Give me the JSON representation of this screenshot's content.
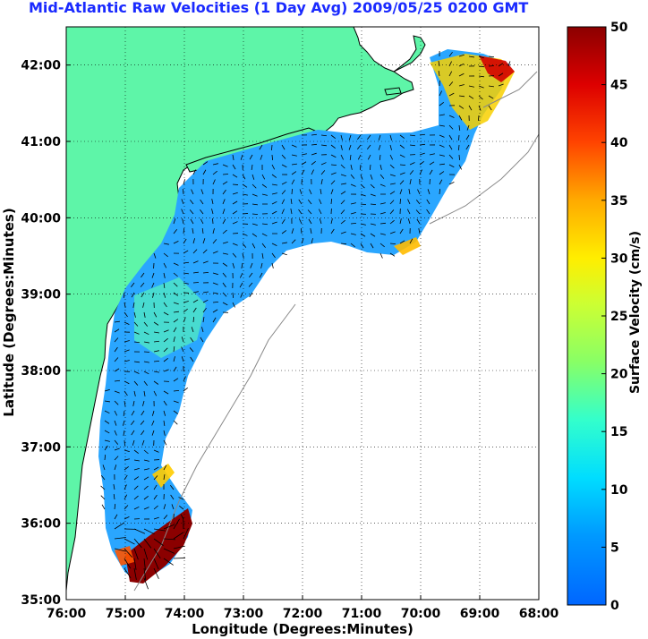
{
  "title": "Mid-Atlantic Raw Velocities (1 Day Avg) 2009/05/25 0200 GMT",
  "chart_data": {
    "type": "heatmap",
    "xlabel": "Longitude (Degrees:Minutes)",
    "ylabel": "Latitude (Degrees:Minutes)",
    "x_ticks": [
      "76:00",
      "75:00",
      "74:00",
      "73:00",
      "72:00",
      "71:00",
      "70:00",
      "69:00",
      "68:00"
    ],
    "y_ticks": [
      "35:00",
      "36:00",
      "37:00",
      "38:00",
      "39:00",
      "40:00",
      "41:00",
      "42:00"
    ],
    "xlim": [
      -76,
      -68
    ],
    "ylim": [
      35,
      42.5
    ],
    "grid": "dotted",
    "colorbar": {
      "label": "Surface Velocity (cm/s)",
      "range": [
        0,
        50
      ],
      "ticks": [
        "0",
        "5",
        "10",
        "15",
        "20",
        "25",
        "30",
        "35",
        "40",
        "45",
        "50"
      ],
      "colormap": "jet"
    },
    "colors": {
      "land": "#5ef5a8",
      "title": "#1a2aff",
      "ocean_mean": "#33aaff",
      "high_speed": "#9b0000"
    }
  }
}
